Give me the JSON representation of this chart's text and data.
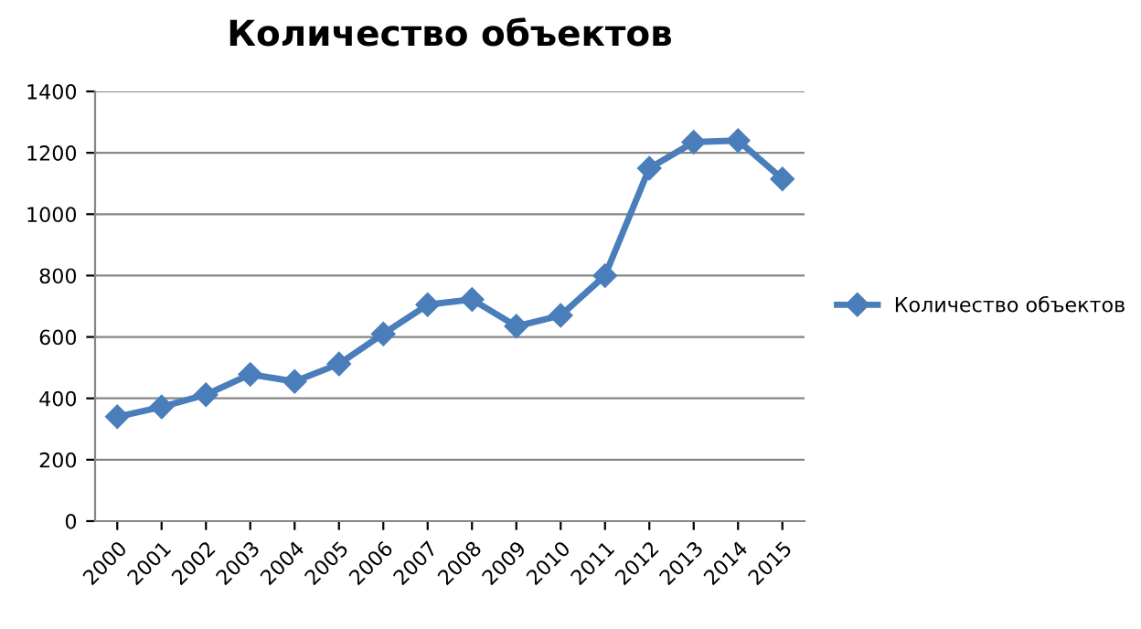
{
  "chart_data": {
    "type": "line",
    "title": "Количество объектов",
    "categories": [
      "2000",
      "2001",
      "2002",
      "2003",
      "2004",
      "2005",
      "2006",
      "2007",
      "2008",
      "2009",
      "2010",
      "2011",
      "2012",
      "2013",
      "2014",
      "2015"
    ],
    "series": [
      {
        "name": "Количество объектов",
        "color": "#4a7ebb",
        "values": [
          340,
          372,
          412,
          478,
          455,
          512,
          610,
          705,
          722,
          635,
          670,
          800,
          1150,
          1235,
          1240,
          1115
        ]
      }
    ],
    "ylim": [
      0,
      1400
    ],
    "yticks": [
      0,
      200,
      400,
      600,
      800,
      1000,
      1200,
      1400
    ],
    "grid": "y",
    "legend": "right",
    "marker": "diamond",
    "line_style": "solid"
  }
}
